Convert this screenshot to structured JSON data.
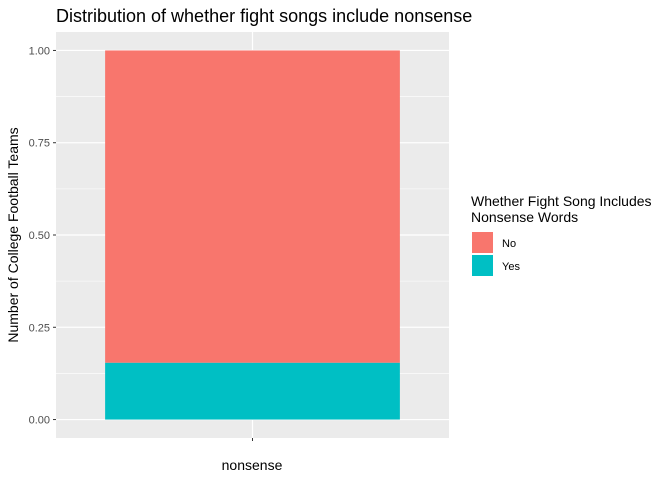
{
  "chart_data": {
    "type": "bar",
    "stacked": true,
    "title": "Distribution of whether fight songs include nonsense",
    "xlabel": "nonsense",
    "ylabel": "Number of College Football Teams",
    "categories": [
      ""
    ],
    "series": [
      {
        "name": "No",
        "values": [
          0.846
        ],
        "color": "#F8766D"
      },
      {
        "name": "Yes",
        "values": [
          0.154
        ],
        "color": "#00BFC4"
      }
    ],
    "ylim": [
      -0.05,
      1.05
    ],
    "yticks": [
      0.0,
      0.25,
      0.5,
      0.75,
      1.0
    ],
    "ytick_labels": [
      "0.00",
      "0.25",
      "0.50",
      "0.75",
      "1.00"
    ],
    "legend": {
      "title_line1": "Whether Fight Song Includes",
      "title_line2": "Nonsense Words",
      "position": "right"
    },
    "grid": true,
    "panel_background": "#EBEBEB"
  }
}
